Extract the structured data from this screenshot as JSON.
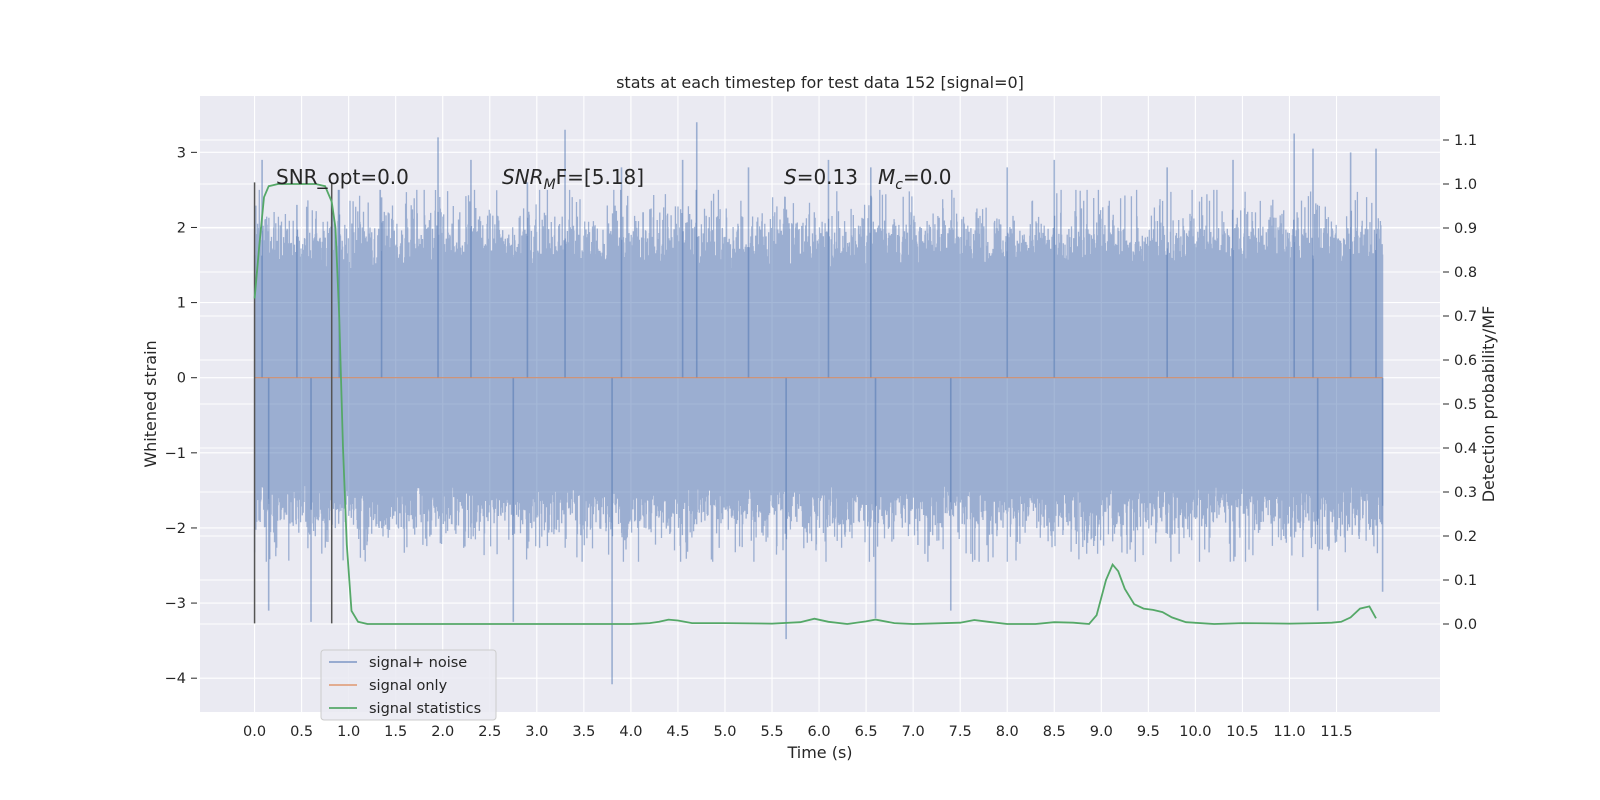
{
  "chart_data": {
    "type": "line",
    "title": "stats at each timestep for test data 152 [signal=0]",
    "xlabel": "Time (s)",
    "ylabel": "Whitened strain",
    "ylabel_right": "Detection probability/MF",
    "xlim": [
      -0.58,
      12.6
    ],
    "ylim": [
      -4.45,
      3.75
    ],
    "ylim_right": [
      -0.2,
      1.2
    ],
    "x_ticks": [
      "0.0",
      "0.5",
      "1.0",
      "1.5",
      "2.0",
      "2.5",
      "3.0",
      "3.5",
      "4.0",
      "4.5",
      "5.0",
      "5.5",
      "6.0",
      "6.5",
      "7.0",
      "7.5",
      "8.0",
      "8.5",
      "9.0",
      "9.5",
      "10.0",
      "10.5",
      "11.0",
      "11.5"
    ],
    "y_ticks": [
      "3",
      "2",
      "1",
      "0",
      "−1",
      "−2",
      "−3",
      "−4"
    ],
    "y_ticks_right": [
      "1.1",
      "1.0",
      "0.9",
      "0.8",
      "0.7",
      "0.6",
      "0.5",
      "0.4",
      "0.3",
      "0.2",
      "0.1",
      "0.0"
    ],
    "grid": true,
    "legend_position": "lower-left",
    "annotations": {
      "snr_opt": "SNR_opt=0.0",
      "snr_mf_sym": "SNR",
      "snr_mf_sub": "M",
      "snr_mf_rest": "F=[5.18]",
      "s_sym": "S",
      "s_rest": "=0.13",
      "mc_sym": "M",
      "mc_sub": "c",
      "mc_rest": "=0.0"
    },
    "markers": [
      {
        "x": 0.0,
        "y_range": [
          -3.27,
          2.6
        ]
      },
      {
        "x": 0.82,
        "y_range": [
          -3.27,
          2.6
        ]
      }
    ],
    "series": [
      {
        "name": "signal+ noise",
        "color": "#4c72b0",
        "description_range": [
          0.0,
          11.99
        ],
        "envelope_typical": [
          -1.5,
          1.5
        ],
        "peaks": [
          {
            "x": 0.08,
            "y": 2.9
          },
          {
            "x": 0.45,
            "y": 2.3
          },
          {
            "x": 0.9,
            "y": 2.5
          },
          {
            "x": 1.35,
            "y": 2.4
          },
          {
            "x": 1.95,
            "y": 3.2
          },
          {
            "x": 2.3,
            "y": 2.9
          },
          {
            "x": 2.9,
            "y": 2.6
          },
          {
            "x": 3.3,
            "y": 3.3
          },
          {
            "x": 3.9,
            "y": 2.8
          },
          {
            "x": 4.55,
            "y": 2.9
          },
          {
            "x": 4.7,
            "y": 3.4
          },
          {
            "x": 5.25,
            "y": 2.8
          },
          {
            "x": 6.1,
            "y": 2.9
          },
          {
            "x": 6.55,
            "y": 2.8
          },
          {
            "x": 8.0,
            "y": 2.8
          },
          {
            "x": 8.5,
            "y": 2.9
          },
          {
            "x": 9.7,
            "y": 2.8
          },
          {
            "x": 10.4,
            "y": 2.9
          },
          {
            "x": 11.05,
            "y": 3.25
          },
          {
            "x": 11.25,
            "y": 3.05
          },
          {
            "x": 11.65,
            "y": 3.0
          },
          {
            "x": 11.92,
            "y": 3.05
          }
        ],
        "troughs": [
          {
            "x": 0.15,
            "y": -3.1
          },
          {
            "x": 0.6,
            "y": -3.25
          },
          {
            "x": 2.75,
            "y": -3.25
          },
          {
            "x": 3.8,
            "y": -4.08
          },
          {
            "x": 5.65,
            "y": -3.48
          },
          {
            "x": 6.6,
            "y": -3.2
          },
          {
            "x": 7.4,
            "y": -3.1
          },
          {
            "x": 11.3,
            "y": -3.1
          },
          {
            "x": 11.99,
            "y": -2.85
          }
        ]
      },
      {
        "name": "signal only",
        "color": "#dd8452",
        "x": [
          0.0,
          11.99
        ],
        "y": [
          0.0,
          0.0
        ]
      },
      {
        "name": "signal statistics",
        "color": "#55a868",
        "axis": "right",
        "x": [
          0.0,
          0.05,
          0.1,
          0.15,
          0.25,
          0.4,
          0.55,
          0.65,
          0.75,
          0.82,
          0.86,
          0.9,
          0.94,
          0.98,
          1.03,
          1.1,
          1.2,
          1.5,
          2.5,
          4.0,
          4.2,
          4.3,
          4.4,
          4.5,
          4.65,
          5.0,
          5.5,
          5.8,
          5.95,
          6.1,
          6.3,
          6.5,
          6.6,
          6.8,
          7.0,
          7.5,
          7.65,
          7.8,
          8.0,
          8.3,
          8.5,
          8.7,
          8.87,
          8.95,
          9.05,
          9.12,
          9.18,
          9.25,
          9.35,
          9.45,
          9.55,
          9.65,
          9.75,
          9.9,
          10.2,
          10.5,
          11.0,
          11.3,
          11.45,
          11.55,
          11.65,
          11.75,
          11.85,
          11.92
        ],
        "y": [
          0.74,
          0.86,
          0.97,
          0.995,
          1.0,
          1.0,
          1.0,
          1.0,
          0.995,
          0.96,
          0.9,
          0.7,
          0.4,
          0.18,
          0.03,
          0.005,
          0.0,
          0.0,
          0.0,
          0.0,
          0.002,
          0.005,
          0.01,
          0.008,
          0.002,
          0.002,
          0.001,
          0.004,
          0.012,
          0.005,
          0.0,
          0.006,
          0.01,
          0.002,
          0.0,
          0.003,
          0.009,
          0.005,
          0.0,
          0.0,
          0.004,
          0.003,
          0.0,
          0.02,
          0.1,
          0.135,
          0.12,
          0.08,
          0.045,
          0.035,
          0.032,
          0.027,
          0.015,
          0.004,
          0.0,
          0.002,
          0.001,
          0.002,
          0.003,
          0.005,
          0.015,
          0.035,
          0.04,
          0.013
        ]
      }
    ]
  }
}
